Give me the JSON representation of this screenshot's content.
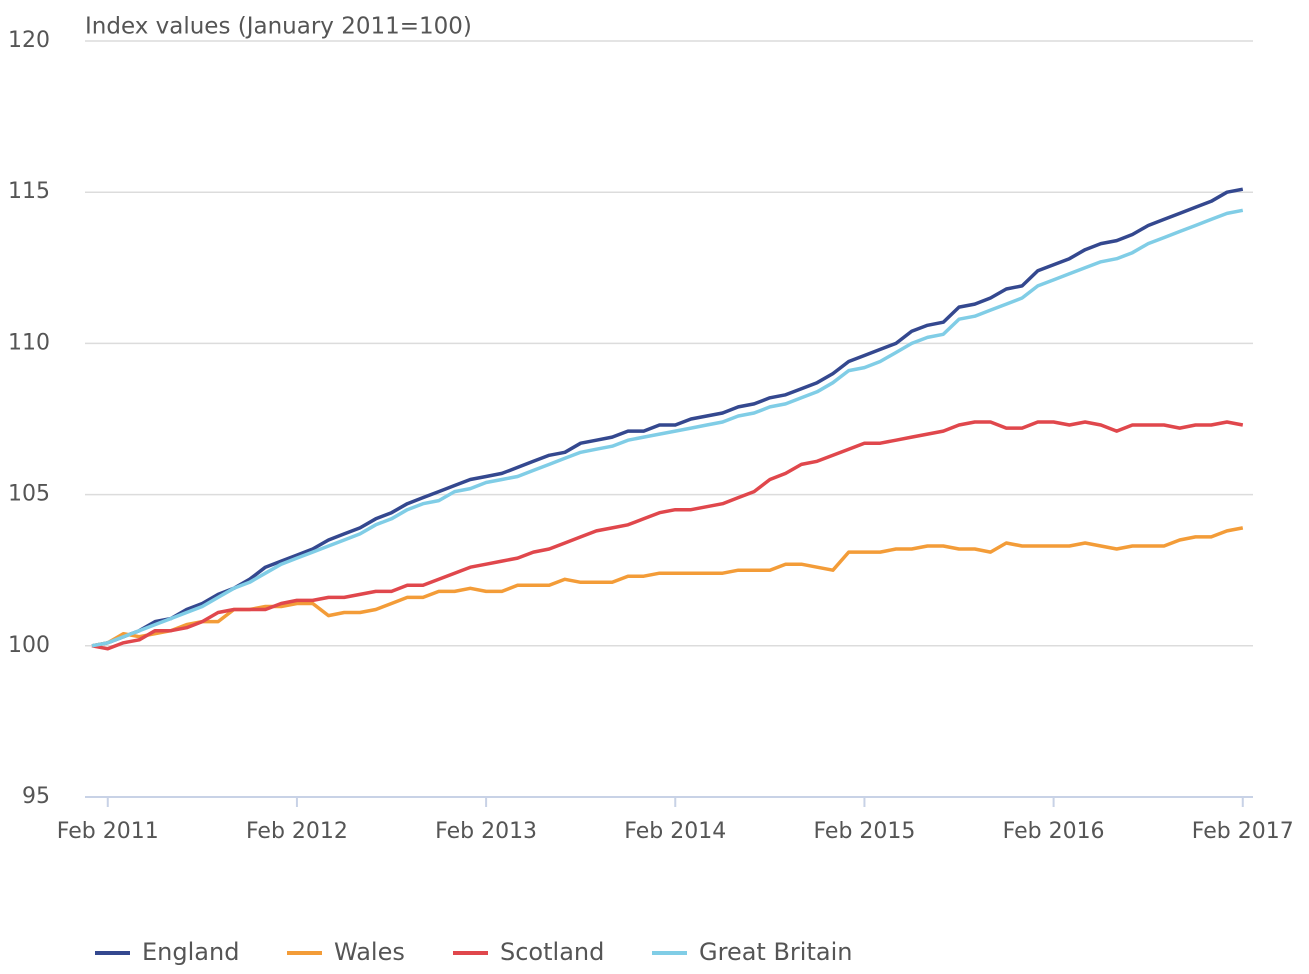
{
  "chart_data": {
    "type": "line",
    "ylabel": "Index values (January 2011=100)",
    "categories": [
      null,
      "Feb 2011",
      null,
      null,
      null,
      null,
      null,
      null,
      null,
      null,
      null,
      null,
      null,
      "Feb 2012",
      null,
      null,
      null,
      null,
      null,
      null,
      null,
      null,
      null,
      null,
      null,
      "Feb 2013",
      null,
      null,
      null,
      null,
      null,
      null,
      null,
      null,
      null,
      null,
      null,
      "Feb 2014",
      null,
      null,
      null,
      null,
      null,
      null,
      null,
      null,
      null,
      null,
      null,
      "Feb 2015",
      null,
      null,
      null,
      null,
      null,
      null,
      null,
      null,
      null,
      null,
      null,
      "Feb 2016",
      null,
      null,
      null,
      null,
      null,
      null,
      null,
      null,
      null,
      null,
      null,
      "Feb 2017"
    ],
    "ylim": [
      95,
      120
    ],
    "yticks": [
      95,
      100,
      105,
      110,
      115,
      120
    ],
    "grid": true,
    "legend": "bottom",
    "series": [
      {
        "name": "England",
        "color": "#34488f",
        "values": [
          100.0,
          100.1,
          100.3,
          100.5,
          100.8,
          100.9,
          101.2,
          101.4,
          101.7,
          101.9,
          102.2,
          102.6,
          102.8,
          103.0,
          103.2,
          103.5,
          103.7,
          103.9,
          104.2,
          104.4,
          104.7,
          104.9,
          105.1,
          105.3,
          105.5,
          105.6,
          105.7,
          105.9,
          106.1,
          106.3,
          106.4,
          106.7,
          106.8,
          106.9,
          107.1,
          107.1,
          107.3,
          107.3,
          107.5,
          107.6,
          107.7,
          107.9,
          108.0,
          108.2,
          108.3,
          108.5,
          108.7,
          109.0,
          109.4,
          109.6,
          109.8,
          110.0,
          110.4,
          110.6,
          110.7,
          111.2,
          111.3,
          111.5,
          111.8,
          111.9,
          112.4,
          112.6,
          112.8,
          113.1,
          113.3,
          113.4,
          113.6,
          113.9,
          114.1,
          114.3,
          114.5,
          114.7,
          115.0,
          115.1
        ]
      },
      {
        "name": "Wales",
        "color": "#f39c38",
        "values": [
          100.0,
          100.1,
          100.4,
          100.3,
          100.4,
          100.5,
          100.7,
          100.8,
          100.8,
          101.2,
          101.2,
          101.3,
          101.3,
          101.4,
          101.4,
          101.0,
          101.1,
          101.1,
          101.2,
          101.4,
          101.6,
          101.6,
          101.8,
          101.8,
          101.9,
          101.8,
          101.8,
          102.0,
          102.0,
          102.0,
          102.2,
          102.1,
          102.1,
          102.1,
          102.3,
          102.3,
          102.4,
          102.4,
          102.4,
          102.4,
          102.4,
          102.5,
          102.5,
          102.5,
          102.7,
          102.7,
          102.6,
          102.5,
          103.1,
          103.1,
          103.1,
          103.2,
          103.2,
          103.3,
          103.3,
          103.2,
          103.2,
          103.1,
          103.4,
          103.3,
          103.3,
          103.3,
          103.3,
          103.4,
          103.3,
          103.2,
          103.3,
          103.3,
          103.3,
          103.5,
          103.6,
          103.6,
          103.8,
          103.9
        ]
      },
      {
        "name": "Scotland",
        "color": "#e0474c",
        "values": [
          100.0,
          99.9,
          100.1,
          100.2,
          100.5,
          100.5,
          100.6,
          100.8,
          101.1,
          101.2,
          101.2,
          101.2,
          101.4,
          101.5,
          101.5,
          101.6,
          101.6,
          101.7,
          101.8,
          101.8,
          102.0,
          102.0,
          102.2,
          102.4,
          102.6,
          102.7,
          102.8,
          102.9,
          103.1,
          103.2,
          103.4,
          103.6,
          103.8,
          103.9,
          104.0,
          104.2,
          104.4,
          104.5,
          104.5,
          104.6,
          104.7,
          104.9,
          105.1,
          105.5,
          105.7,
          106.0,
          106.1,
          106.3,
          106.5,
          106.7,
          106.7,
          106.8,
          106.9,
          107.0,
          107.1,
          107.3,
          107.4,
          107.4,
          107.2,
          107.2,
          107.4,
          107.4,
          107.3,
          107.4,
          107.3,
          107.1,
          107.3,
          107.3,
          107.3,
          107.2,
          107.3,
          107.3,
          107.4,
          107.3
        ]
      },
      {
        "name": "Great Britain",
        "color": "#80cde6",
        "values": [
          100.0,
          100.1,
          100.3,
          100.5,
          100.7,
          100.9,
          101.1,
          101.3,
          101.6,
          101.9,
          102.1,
          102.4,
          102.7,
          102.9,
          103.1,
          103.3,
          103.5,
          103.7,
          104.0,
          104.2,
          104.5,
          104.7,
          104.8,
          105.1,
          105.2,
          105.4,
          105.5,
          105.6,
          105.8,
          106.0,
          106.2,
          106.4,
          106.5,
          106.6,
          106.8,
          106.9,
          107.0,
          107.1,
          107.2,
          107.3,
          107.4,
          107.6,
          107.7,
          107.9,
          108.0,
          108.2,
          108.4,
          108.7,
          109.1,
          109.2,
          109.4,
          109.7,
          110.0,
          110.2,
          110.3,
          110.8,
          110.9,
          111.1,
          111.3,
          111.5,
          111.9,
          112.1,
          112.3,
          112.5,
          112.7,
          112.8,
          113.0,
          113.3,
          113.5,
          113.7,
          113.9,
          114.1,
          114.3,
          114.4
        ]
      }
    ]
  }
}
